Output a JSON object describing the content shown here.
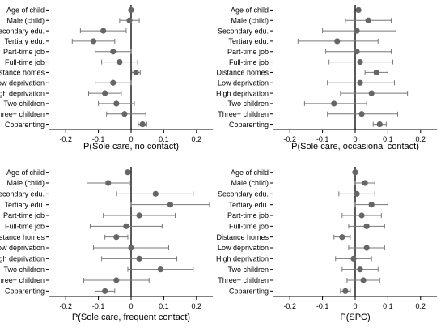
{
  "colors": {
    "point": "#666666",
    "errorbar": "#777777",
    "axis": "#000000",
    "zero_line": "#000000",
    "background": "#ffffff"
  },
  "chart_data": [
    {
      "type": "coefficient-plot",
      "xlabel": "P(Sole care, no contact)",
      "xlim": [
        -0.25,
        0.25
      ],
      "xticks": [
        -0.2,
        -0.1,
        0,
        0.1,
        0.2
      ],
      "xtick_labels": [
        "-0.2",
        "-0.1",
        "0",
        "0.1",
        "0.2"
      ],
      "categories": [
        "Age of child",
        "Male (child)",
        "Secondary edu.",
        "Tertiary edu.",
        "Part-time job",
        "Full-time job",
        "Distance homes",
        "Low deprivation",
        "High deprivation",
        "Two children",
        "Three+ children",
        "Coparenting"
      ],
      "estimates": [
        0.0,
        -0.005,
        -0.085,
        -0.115,
        -0.055,
        -0.035,
        0.015,
        -0.055,
        -0.08,
        -0.045,
        -0.02,
        0.035
      ],
      "ci_low": [
        -0.004,
        -0.035,
        -0.155,
        -0.18,
        -0.11,
        -0.09,
        0.002,
        -0.11,
        -0.13,
        -0.1,
        -0.075,
        0.022
      ],
      "ci_high": [
        0.004,
        0.025,
        -0.015,
        -0.05,
        0.0,
        0.02,
        0.028,
        0.0,
        -0.03,
        0.01,
        0.045,
        0.048
      ]
    },
    {
      "type": "coefficient-plot",
      "xlabel": "P(Sole care, occasional contact)",
      "xlim": [
        -0.25,
        0.25
      ],
      "xticks": [
        -0.2,
        -0.1,
        0,
        0.1,
        0.2
      ],
      "xtick_labels": [
        "-0.2",
        "-0.1",
        "0",
        "0.1",
        "0.2"
      ],
      "categories": [
        "Age of child",
        "Male (child)",
        "Secondary edu.",
        "Tertiary edu.",
        "Part-time job",
        "Full-time job",
        "Distance homes",
        "Low deprivation",
        "High deprivation",
        "Two children",
        "Three+ children",
        "Coparenting"
      ],
      "estimates": [
        0.01,
        0.04,
        0.005,
        -0.055,
        0.005,
        0.015,
        0.065,
        0.015,
        0.05,
        -0.065,
        0.02,
        0.075
      ],
      "ci_low": [
        0.005,
        -0.03,
        -0.1,
        -0.175,
        -0.09,
        -0.08,
        0.03,
        -0.085,
        -0.045,
        -0.155,
        -0.085,
        0.055
      ],
      "ci_high": [
        0.015,
        0.11,
        0.125,
        0.07,
        0.11,
        0.115,
        0.1,
        0.12,
        0.16,
        0.035,
        0.13,
        0.095
      ]
    },
    {
      "type": "coefficient-plot",
      "xlabel": "P(Sole care, frequent contact)",
      "xlim": [
        -0.25,
        0.25
      ],
      "xticks": [
        -0.2,
        -0.1,
        0,
        0.1,
        0.2
      ],
      "xtick_labels": [
        "-0.2",
        "-0.1",
        "0",
        "0.1",
        "0.2"
      ],
      "categories": [
        "Age of child",
        "Male (child)",
        "Secondary edu.",
        "Tertiary edu.",
        "Part-time job",
        "Full-time job",
        "Distance homes",
        "Low deprivation",
        "High deprivation",
        "Two children",
        "Three+ children",
        "Coparenting"
      ],
      "estimates": [
        -0.01,
        -0.07,
        0.075,
        0.12,
        0.025,
        -0.015,
        -0.045,
        0.0,
        0.025,
        0.09,
        -0.045,
        -0.08
      ],
      "ci_low": [
        -0.015,
        -0.135,
        -0.045,
        0.0,
        -0.085,
        -0.125,
        -0.08,
        -0.115,
        -0.09,
        -0.01,
        -0.145,
        -0.11
      ],
      "ci_high": [
        -0.005,
        -0.005,
        0.19,
        0.24,
        0.135,
        0.095,
        -0.01,
        0.115,
        0.14,
        0.19,
        0.055,
        -0.05
      ]
    },
    {
      "type": "coefficient-plot",
      "xlabel": "P(SPC)",
      "xlim": [
        -0.25,
        0.25
      ],
      "xticks": [
        -0.2,
        -0.1,
        0,
        0.1,
        0.2
      ],
      "xtick_labels": [
        "-0.2",
        "-0.1",
        "0",
        "0.1",
        "0.2"
      ],
      "categories": [
        "Age of child",
        "Male (child)",
        "Secondary edu.",
        "Tertiary edu.",
        "Part-time job",
        "Full-time job",
        "Distance homes",
        "Low deprivation",
        "High deprivation",
        "Two children",
        "Three+ children",
        "Coparenting"
      ],
      "estimates": [
        0.0,
        0.03,
        0.005,
        0.05,
        0.02,
        0.035,
        -0.04,
        0.035,
        -0.005,
        0.015,
        0.025,
        -0.03
      ],
      "ci_low": [
        -0.004,
        0.0,
        -0.05,
        0.0,
        -0.04,
        -0.02,
        -0.065,
        -0.02,
        -0.06,
        -0.04,
        -0.025,
        -0.045
      ],
      "ci_high": [
        0.004,
        0.06,
        0.06,
        0.1,
        0.08,
        0.09,
        -0.015,
        0.09,
        0.05,
        0.07,
        0.075,
        -0.015
      ]
    }
  ]
}
